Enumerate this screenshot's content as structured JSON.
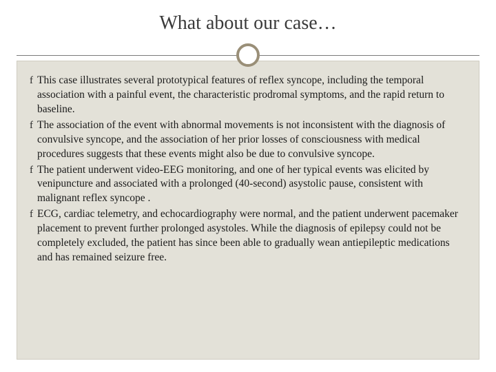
{
  "slide": {
    "title": "What about our case…",
    "background_color": "#ffffff",
    "content_bg": "#e3e1d8",
    "content_border": "#cfccc0",
    "divider_circle_color": "#9a8f78",
    "divider_line_color": "#7a7a7a",
    "title_color": "#3a3a3a",
    "text_color": "#1a1a1a",
    "title_fontsize": 28,
    "body_fontsize": 15.5,
    "bullet_glyph": "f",
    "bullets": [
      "This case illustrates several prototypical features of reflex syncope, including the temporal association with a painful event, the characteristic prodromal symptoms, and the rapid return to baseline.",
      "The association of the event with abnormal movements is not inconsistent with the diagnosis of convulsive syncope, and the association of her prior losses of consciousness with medical procedures suggests that these events might also be due to convulsive syncope.",
      "The patient underwent video-EEG monitoring, and one of her typical events was elicited by venipuncture and associated with a prolonged (40-second) asystolic pause, consistent with malignant reflex syncope .",
      "ECG, cardiac telemetry, and echocardiography were normal, and the patient underwent pacemaker placement to prevent further prolonged asystoles. While the diagnosis of epilepsy could not be completely excluded, the patient has since been able to gradually wean antiepileptic medications and has remained seizure free."
    ]
  }
}
